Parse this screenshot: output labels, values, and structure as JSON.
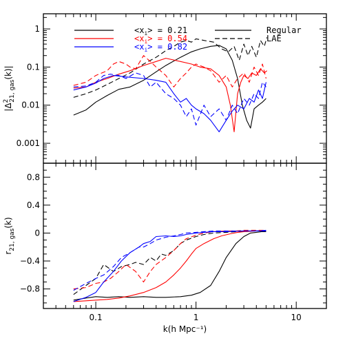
{
  "chart_data": [
    {
      "id": "top",
      "type": "line",
      "xscale": "log",
      "yscale": "log",
      "xlim": [
        0.03,
        20
      ],
      "ylim": [
        0.0003,
        2.5
      ],
      "ylabel": "|Δ²21, gas(k)|",
      "ylabel_main": "|Δ",
      "ylabel_sup": "2",
      "ylabel_sub": "21, gas",
      "ylabel_tail": "(k)|",
      "yticklabels": [
        {
          "value": 1,
          "label": "1"
        },
        {
          "value": 0.1,
          "label": "0.1"
        },
        {
          "value": 0.01,
          "label": "0.01"
        },
        {
          "value": 0.001,
          "label": "0.001"
        }
      ],
      "legend_fractions": [
        {
          "prefix": "<x",
          "sub": "i",
          "suffix": "> = 0.21",
          "color": "#000000"
        },
        {
          "prefix": "<x",
          "sub": "i",
          "suffix": "> = 0.54",
          "color": "#ff0000"
        },
        {
          "prefix": "<x",
          "sub": "i",
          "suffix": "> = 0.82",
          "color": "#0000ff"
        }
      ],
      "legend_styles": [
        {
          "label": "Regular",
          "dash": "solid"
        },
        {
          "label": "LAE",
          "dash": "dashed"
        }
      ],
      "series": [
        {
          "color": "#000000",
          "dash": "solid",
          "x": [
            0.06,
            0.08,
            0.1,
            0.13,
            0.17,
            0.22,
            0.3,
            0.4,
            0.5,
            0.7,
            0.9,
            1.1,
            1.4,
            1.7,
            2.0,
            2.3,
            2.6,
            2.9,
            3.2,
            3.5,
            3.8,
            4.2,
            4.6,
            5.0
          ],
          "y": [
            0.0055,
            0.0075,
            0.012,
            0.018,
            0.026,
            0.03,
            0.045,
            0.075,
            0.11,
            0.18,
            0.25,
            0.3,
            0.35,
            0.37,
            0.3,
            0.15,
            0.05,
            0.01,
            0.004,
            0.0025,
            0.008,
            0.01,
            0.012,
            0.015
          ]
        },
        {
          "color": "#000000",
          "dash": "dashed",
          "x": [
            0.06,
            0.08,
            0.1,
            0.13,
            0.17,
            0.22,
            0.3,
            0.4,
            0.5,
            0.6,
            0.7,
            0.8,
            0.9,
            1.0,
            1.2,
            1.5,
            1.8,
            2.1,
            2.4,
            2.7,
            3.0,
            3.3,
            3.6,
            4.0,
            4.4,
            4.8,
            5.1
          ],
          "y": [
            0.016,
            0.02,
            0.025,
            0.035,
            0.05,
            0.07,
            0.12,
            0.18,
            0.27,
            0.35,
            0.45,
            0.5,
            0.45,
            0.55,
            0.5,
            0.45,
            0.3,
            0.25,
            0.35,
            0.15,
            0.4,
            0.2,
            0.35,
            0.18,
            0.5,
            0.35,
            0.6
          ]
        },
        {
          "color": "#ff0000",
          "dash": "solid",
          "x": [
            0.06,
            0.08,
            0.1,
            0.13,
            0.17,
            0.22,
            0.3,
            0.4,
            0.5,
            0.7,
            0.9,
            1.1,
            1.4,
            1.7,
            2.0,
            2.2,
            2.4,
            2.6,
            2.8,
            3.0,
            3.3,
            3.6,
            4.0,
            4.4,
            4.8,
            5.1
          ],
          "y": [
            0.028,
            0.03,
            0.04,
            0.05,
            0.065,
            0.08,
            0.11,
            0.14,
            0.17,
            0.14,
            0.12,
            0.1,
            0.09,
            0.06,
            0.03,
            0.01,
            0.002,
            0.02,
            0.04,
            0.06,
            0.05,
            0.07,
            0.06,
            0.09,
            0.07,
            0.08
          ]
        },
        {
          "color": "#ff0000",
          "dash": "dashed",
          "x": [
            0.06,
            0.08,
            0.1,
            0.13,
            0.15,
            0.17,
            0.2,
            0.22,
            0.25,
            0.3,
            0.35,
            0.4,
            0.5,
            0.6,
            0.7,
            0.8,
            0.9,
            1.0,
            1.2,
            1.4,
            1.7,
            2.0,
            2.3,
            2.6,
            3.0,
            3.4,
            3.8,
            4.2,
            4.6,
            5.0
          ],
          "y": [
            0.033,
            0.04,
            0.06,
            0.08,
            0.12,
            0.14,
            0.12,
            0.1,
            0.09,
            0.2,
            0.14,
            0.1,
            0.06,
            0.03,
            0.05,
            0.07,
            0.1,
            0.12,
            0.1,
            0.08,
            0.04,
            0.06,
            0.03,
            0.05,
            0.07,
            0.04,
            0.1,
            0.06,
            0.12,
            0.05
          ]
        },
        {
          "color": "#0000ff",
          "dash": "solid",
          "x": [
            0.06,
            0.08,
            0.1,
            0.12,
            0.15,
            0.2,
            0.3,
            0.4,
            0.5,
            0.6,
            0.7,
            0.8,
            0.9,
            1.0,
            1.2,
            1.4,
            1.7,
            2.0,
            2.3,
            2.6,
            3.0,
            3.4,
            3.8,
            4.2,
            4.6,
            5.0
          ],
          "y": [
            0.025,
            0.03,
            0.038,
            0.05,
            0.06,
            0.055,
            0.05,
            0.045,
            0.04,
            0.02,
            0.012,
            0.015,
            0.01,
            0.008,
            0.006,
            0.004,
            0.002,
            0.004,
            0.007,
            0.01,
            0.008,
            0.015,
            0.012,
            0.025,
            0.015,
            0.04
          ]
        },
        {
          "color": "#0000ff",
          "dash": "dashed",
          "x": [
            0.06,
            0.08,
            0.1,
            0.12,
            0.14,
            0.17,
            0.2,
            0.25,
            0.3,
            0.35,
            0.4,
            0.5,
            0.6,
            0.7,
            0.8,
            0.9,
            1.0,
            1.2,
            1.4,
            1.7,
            2.0,
            2.3,
            2.6,
            3.0,
            3.4,
            3.8,
            4.2,
            4.6,
            5.0
          ],
          "y": [
            0.03,
            0.032,
            0.04,
            0.06,
            0.065,
            0.06,
            0.05,
            0.07,
            0.06,
            0.03,
            0.04,
            0.02,
            0.015,
            0.01,
            0.005,
            0.008,
            0.003,
            0.01,
            0.005,
            0.008,
            0.004,
            0.01,
            0.006,
            0.015,
            0.01,
            0.02,
            0.015,
            0.04,
            0.03
          ]
        }
      ]
    },
    {
      "id": "bottom",
      "type": "line",
      "xscale": "log",
      "yscale": "linear",
      "xlim": [
        0.03,
        20
      ],
      "ylim": [
        -1.08,
        1.0
      ],
      "ylabel": "r21, gas(k)",
      "ylabel_main": "r",
      "ylabel_sub": "21, gas",
      "ylabel_tail": "(k)",
      "xlabel": "k(h Mpc⁻¹)",
      "xticklabels": [
        {
          "value": 0.1,
          "label": "0.1"
        },
        {
          "value": 1,
          "label": "1"
        },
        {
          "value": 10,
          "label": "10"
        }
      ],
      "yticklabels": [
        {
          "value": 0.8,
          "label": "0.8"
        },
        {
          "value": 0.4,
          "label": "0.4"
        },
        {
          "value": 0,
          "label": "0"
        },
        {
          "value": -0.4,
          "label": "−0.4"
        },
        {
          "value": -0.8,
          "label": "−0.8"
        }
      ],
      "series": [
        {
          "color": "#000000",
          "dash": "solid",
          "x": [
            0.06,
            0.08,
            0.1,
            0.13,
            0.17,
            0.22,
            0.3,
            0.4,
            0.5,
            0.7,
            0.9,
            1.1,
            1.4,
            1.7,
            2.0,
            2.5,
            3.0,
            3.5,
            4.0,
            4.5,
            5.0
          ],
          "y": [
            -0.96,
            -0.93,
            -0.91,
            -0.92,
            -0.91,
            -0.92,
            -0.91,
            -0.92,
            -0.92,
            -0.91,
            -0.89,
            -0.85,
            -0.75,
            -0.55,
            -0.35,
            -0.15,
            -0.05,
            0.0,
            0.01,
            0.02,
            0.02
          ]
        },
        {
          "color": "#000000",
          "dash": "dashed",
          "x": [
            0.06,
            0.08,
            0.1,
            0.12,
            0.15,
            0.18,
            0.22,
            0.25,
            0.3,
            0.35,
            0.4,
            0.45,
            0.5,
            0.6,
            0.7,
            0.8,
            1.0,
            1.2,
            1.5,
            2.0,
            2.5,
            3.0,
            4.0,
            5.0
          ],
          "y": [
            -0.88,
            -0.75,
            -0.65,
            -0.45,
            -0.55,
            -0.48,
            -0.45,
            -0.42,
            -0.45,
            -0.35,
            -0.4,
            -0.3,
            -0.32,
            -0.25,
            -0.15,
            -0.1,
            -0.05,
            -0.02,
            0.0,
            0.01,
            0.02,
            0.02,
            0.03,
            0.03
          ]
        },
        {
          "color": "#ff0000",
          "dash": "solid",
          "x": [
            0.06,
            0.08,
            0.1,
            0.13,
            0.17,
            0.22,
            0.3,
            0.4,
            0.5,
            0.6,
            0.7,
            0.8,
            0.9,
            1.0,
            1.2,
            1.5,
            1.8,
            2.2,
            2.6,
            3.0,
            4.0,
            5.0
          ],
          "y": [
            -0.98,
            -0.97,
            -0.96,
            -0.95,
            -0.93,
            -0.9,
            -0.85,
            -0.78,
            -0.7,
            -0.6,
            -0.5,
            -0.4,
            -0.3,
            -0.22,
            -0.15,
            -0.08,
            -0.04,
            -0.01,
            0.01,
            0.02,
            0.03,
            0.03
          ]
        },
        {
          "color": "#ff0000",
          "dash": "dashed",
          "x": [
            0.06,
            0.08,
            0.1,
            0.12,
            0.14,
            0.17,
            0.2,
            0.25,
            0.3,
            0.35,
            0.4,
            0.5,
            0.6,
            0.7,
            0.8,
            1.0,
            1.2,
            1.5,
            2.0,
            2.5,
            3.0,
            4.0,
            5.0
          ],
          "y": [
            -0.8,
            -0.78,
            -0.72,
            -0.7,
            -0.65,
            -0.55,
            -0.45,
            -0.55,
            -0.7,
            -0.55,
            -0.45,
            -0.35,
            -0.25,
            -0.15,
            -0.08,
            -0.03,
            0.0,
            0.02,
            0.03,
            0.03,
            0.04,
            0.04,
            0.04
          ]
        },
        {
          "color": "#0000ff",
          "dash": "solid",
          "x": [
            0.06,
            0.08,
            0.1,
            0.12,
            0.15,
            0.18,
            0.22,
            0.27,
            0.3,
            0.35,
            0.4,
            0.5,
            0.6,
            0.7,
            0.8,
            1.0,
            1.2,
            1.5,
            2.0,
            3.0,
            4.0,
            5.0
          ],
          "y": [
            -0.98,
            -0.92,
            -0.85,
            -0.7,
            -0.55,
            -0.4,
            -0.28,
            -0.2,
            -0.15,
            -0.12,
            -0.05,
            -0.04,
            -0.05,
            -0.04,
            -0.02,
            0.0,
            0.01,
            0.02,
            0.02,
            0.03,
            0.03,
            0.03
          ]
        },
        {
          "color": "#0000ff",
          "dash": "dashed",
          "x": [
            0.06,
            0.08,
            0.1,
            0.12,
            0.15,
            0.18,
            0.22,
            0.27,
            0.3,
            0.35,
            0.4,
            0.5,
            0.6,
            0.7,
            0.8,
            1.0,
            1.2,
            1.5,
            2.0,
            3.0,
            4.0,
            5.0
          ],
          "y": [
            -0.82,
            -0.72,
            -0.65,
            -0.6,
            -0.48,
            -0.35,
            -0.28,
            -0.2,
            -0.2,
            -0.15,
            -0.1,
            -0.06,
            -0.04,
            -0.02,
            0.0,
            0.01,
            0.02,
            0.03,
            0.03,
            0.03,
            0.03,
            0.04
          ]
        }
      ]
    }
  ]
}
